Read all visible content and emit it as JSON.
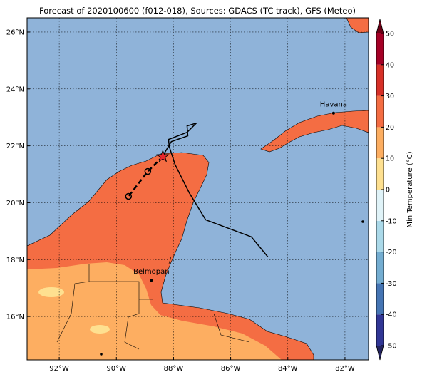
{
  "map": {
    "title": "Forecast of 2020100600 (f012-018), Sources: GDACS (TC track), GFS (Meteo)",
    "xlim": [
      -93.125,
      -81.175
    ],
    "ylim": [
      14.475,
      26.5
    ],
    "xticks": [
      {
        "value": -92,
        "label": "92°W"
      },
      {
        "value": -90,
        "label": "90°W"
      },
      {
        "value": -88,
        "label": "88°W"
      },
      {
        "value": -86,
        "label": "86°W"
      },
      {
        "value": -84,
        "label": "84°W"
      },
      {
        "value": -82,
        "label": "82°W"
      }
    ],
    "yticks": [
      {
        "value": 16,
        "label": "16°N"
      },
      {
        "value": 18,
        "label": "18°N"
      },
      {
        "value": 20,
        "label": "20°N"
      },
      {
        "value": 22,
        "label": "22°N"
      },
      {
        "value": 24,
        "label": "24°N"
      },
      {
        "value": 26,
        "label": "26°N"
      }
    ],
    "grid": true,
    "cities": [
      {
        "name": "Havana",
        "lon": -82.4,
        "lat": 23.15
      },
      {
        "name": "Belmopan",
        "lon": -88.775,
        "lat": 17.275
      }
    ],
    "track": {
      "lon": [
        -84.7,
        -85.275,
        -86.875,
        -87.45,
        -87.95,
        -88.15,
        -88.175,
        -87.525,
        -87.2,
        -87.525,
        -87.5,
        -88.075,
        -88.375
      ],
      "lat": [
        18.1,
        18.8,
        19.4,
        20.35,
        21.35,
        21.975,
        22.225,
        22.475,
        22.8,
        22.7,
        22.35,
        22.15,
        21.65
      ]
    },
    "forecast": {
      "lon": [
        -88.375,
        -88.9,
        -89.575
      ],
      "lat": [
        21.625,
        21.1,
        20.225
      ]
    },
    "colorbar": {
      "label": "Min Temperature (°C)",
      "lim": [
        -50,
        50
      ],
      "ticks": [
        -50,
        -40,
        -30,
        -20,
        -10,
        0,
        10,
        20,
        30,
        40,
        50
      ],
      "colors": [
        "#313695",
        "#4575b4",
        "#74add1",
        "#abd9e9",
        "#e0f3f8",
        "#fee090",
        "#fdae61",
        "#f46d43",
        "#d73027",
        "#a50026"
      ],
      "under": "#24245f",
      "over": "#6b0015"
    }
  }
}
